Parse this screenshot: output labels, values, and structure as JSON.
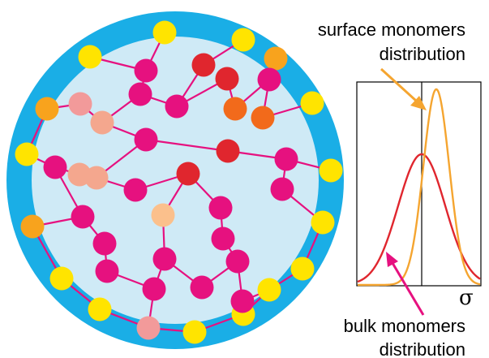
{
  "labels": {
    "surface_line1": "surface monomers",
    "surface_line2": "distribution",
    "bulk_line1": "bulk monomers",
    "bulk_line2": "distribution",
    "axis_symbol": "σ"
  },
  "colors": {
    "shell": "#1aaee6",
    "core": "#cfeaf6",
    "bond": "#e6117f",
    "bulk_curve": "#e0262e",
    "surface_curve": "#f5a530",
    "bulk_arrow": "#e6117f",
    "surface_arrow": "#f5a530"
  }
}
